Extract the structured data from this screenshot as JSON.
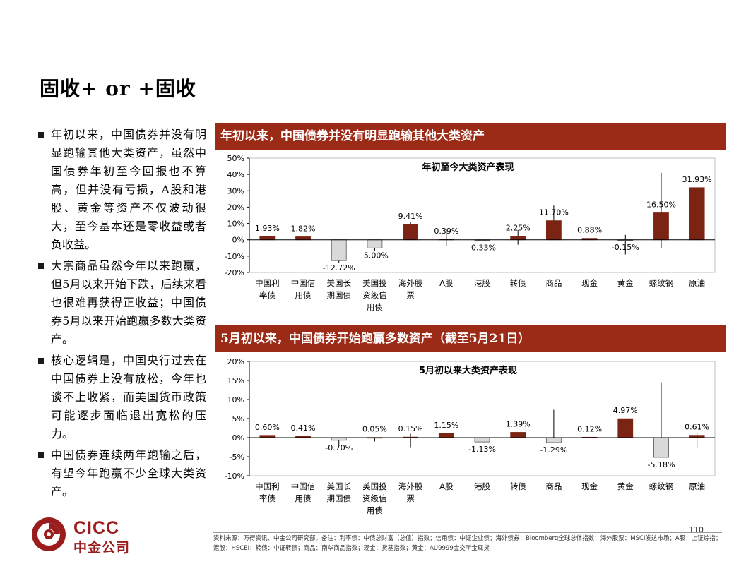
{
  "title": "固收+ or +固收",
  "bullets": [
    "年初以来，中国债券并没有明显跑输其他大类资产，虽然中国债券年初至今回报也不算高，但并没有亏损，A股和港股、黄金等资产不仅波动很大，至今基本还是零收益或者负收益。",
    "大宗商品虽然今年以来跑赢，但5月以来开始下跌，后续来看也很难再获得正收益；中国债券5月以来开始跑赢多数大类资产。",
    "核心逻辑是，中国央行过去在中国债券上没有放松，今年也谈不上收紧，而美国货币政策可能逐步面临退出宽松的压力。",
    "中国债券连续两年跑输之后，有望今年跑赢不少全球大类资产。"
  ],
  "banner1": "年初以来，中国债券并没有明显跑输其他大类资产",
  "banner2": "5月初以来，中国债券开始跑赢多数资产（截至5月21日）",
  "source": "资料来源：万得资讯、中金公司研究部。备注：利率债：中债总财富（总值）指数；信用债：中证企业债；海外债券：Bloomberg全球总体指数；海外股票：MSCI发达市场；A股：上证综指；港股：HSCEI；转债：中证转债；商品：南华商品指数；现金：货基指数；黄金：AU9999金交所金现货",
  "page_number": "110",
  "logo": {
    "en": "CICC",
    "cn": "中金公司"
  },
  "colors": {
    "positive": "#7b2413",
    "negative": "#d9d9d9",
    "banner": "#9b2a16"
  },
  "chart_data": [
    {
      "type": "bar",
      "title": "年初至今大类资产表现",
      "categories": [
        [
          "中国利",
          "率债"
        ],
        [
          "中国信",
          "用债"
        ],
        [
          "美国长",
          "期国债"
        ],
        [
          "美国投",
          "资级信",
          "用债"
        ],
        [
          "海外股",
          "票"
        ],
        [
          "A股"
        ],
        [
          "港股"
        ],
        [
          "转债"
        ],
        [
          "商品"
        ],
        [
          "现金"
        ],
        [
          "黄金"
        ],
        [
          "螺纹钢"
        ],
        [
          "原油"
        ]
      ],
      "values": [
        1.93,
        1.82,
        -12.72,
        -5.0,
        9.41,
        0.39,
        -0.33,
        2.25,
        11.7,
        0.88,
        -0.15,
        16.5,
        31.93
      ],
      "labels": [
        "1.93%",
        "1.82%",
        "-12.72%",
        "-5.00%",
        "9.41%",
        "0.39%",
        "-0.33%",
        "2.25%",
        "11.70%",
        "0.88%",
        "-0.15%",
        "16.50%",
        "31.93%"
      ],
      "ranges": [
        [
          0,
          0
        ],
        [
          0,
          0
        ],
        [
          -14,
          -10
        ],
        [
          -7,
          -3
        ],
        [
          7,
          11
        ],
        [
          -4,
          6
        ],
        [
          -5,
          13
        ],
        [
          -3,
          6
        ],
        [
          4,
          21
        ],
        [
          0,
          0
        ],
        [
          -9,
          3
        ],
        [
          -5,
          41
        ],
        [
          0,
          31.93
        ]
      ],
      "ylim": [
        -20,
        50
      ],
      "yticks": [
        -20,
        -10,
        0,
        10,
        20,
        30,
        40,
        50
      ],
      "ytick_labels": [
        "-20%",
        "-10%",
        "0%",
        "10%",
        "20%",
        "30%",
        "40%",
        "50%"
      ]
    },
    {
      "type": "bar",
      "title": "5月初以来大类资产表现",
      "categories": [
        [
          "中国利",
          "率债"
        ],
        [
          "中国信",
          "用债"
        ],
        [
          "美国长",
          "期国债"
        ],
        [
          "美国投",
          "资级信",
          "用债"
        ],
        [
          "海外股",
          "票"
        ],
        [
          "A股"
        ],
        [
          "港股"
        ],
        [
          "转债"
        ],
        [
          "商品"
        ],
        [
          "现金"
        ],
        [
          "黄金"
        ],
        [
          "螺纹钢"
        ],
        [
          "原油"
        ]
      ],
      "values": [
        0.6,
        0.41,
        -0.7,
        0.05,
        0.15,
        1.15,
        -1.13,
        1.39,
        -1.29,
        0.12,
        4.97,
        -5.18,
        0.61
      ],
      "labels": [
        "0.60%",
        "0.41%",
        "-0.70%",
        "0.05%",
        "0.15%",
        "1.15%",
        "-1.13%",
        "1.39%",
        "-1.29%",
        "0.12%",
        "4.97%",
        "-5.18%",
        "0.61%"
      ],
      "ranges": [
        [
          0,
          0
        ],
        [
          0,
          0
        ],
        [
          -2,
          0
        ],
        [
          -1,
          0
        ],
        [
          -2.5,
          1
        ],
        [
          0,
          0
        ],
        [
          -4.5,
          0
        ],
        [
          0,
          0
        ],
        [
          -1.3,
          7.3
        ],
        [
          0,
          0
        ],
        [
          0,
          0
        ],
        [
          -5.18,
          14.5
        ],
        [
          -2.7,
          1.2
        ]
      ],
      "ylim": [
        -10,
        20
      ],
      "yticks": [
        -10,
        -5,
        0,
        5,
        10,
        15,
        20
      ],
      "ytick_labels": [
        "-10%",
        "-5%",
        "0%",
        "5%",
        "10%",
        "15%",
        "20%"
      ]
    }
  ]
}
